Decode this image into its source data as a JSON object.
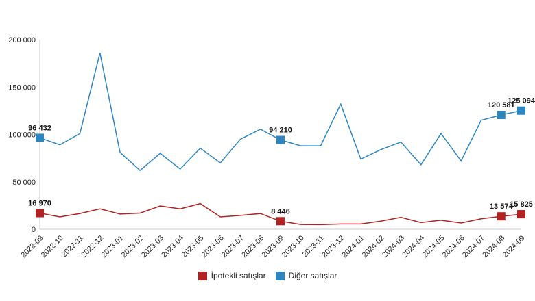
{
  "chart_data": {
    "type": "line",
    "categories": [
      "2022-09",
      "2022-10",
      "2022-11",
      "2022-12",
      "2023-01",
      "2023-02",
      "2023-03",
      "2023-04",
      "2023-05",
      "2023-06",
      "2023-07",
      "2023-08",
      "2023-09",
      "2023-10",
      "2023-11",
      "2023-12",
      "2024-01",
      "2024-02",
      "2024-03",
      "2024-04",
      "2024-05",
      "2024-06",
      "2024-07",
      "2024-08",
      "2024-09"
    ],
    "ylim": [
      0,
      200000
    ],
    "yticks": [
      0,
      50000,
      100000,
      150000,
      200000
    ],
    "ytick_labels": [
      "0",
      "50 000",
      "100 000",
      "150 000",
      "200 000"
    ],
    "grid": false,
    "legend_position": "bottom",
    "series": [
      {
        "name": "İpotekli satışlar",
        "color": "#b22222",
        "values": [
          16970,
          13000,
          16500,
          21500,
          16000,
          17000,
          24500,
          21500,
          27000,
          13000,
          14500,
          16500,
          8446,
          5000,
          4800,
          5500,
          5500,
          8500,
          12500,
          7000,
          9500,
          6500,
          11000,
          13574,
          15825
        ],
        "marked_indices": [
          0,
          12,
          23,
          24
        ],
        "labels": [
          "16 970",
          "8 446",
          "13 574",
          "15 825"
        ]
      },
      {
        "name": "Diğer satışlar",
        "color": "#2e86c1",
        "values": [
          96432,
          89000,
          101000,
          186000,
          81000,
          62000,
          80000,
          63500,
          85500,
          70000,
          95000,
          105500,
          94210,
          88000,
          88000,
          132000,
          74000,
          84000,
          92000,
          68000,
          101000,
          72000,
          115000,
          120581,
          125094
        ],
        "marked_indices": [
          0,
          12,
          23,
          24
        ],
        "labels": [
          "96 432",
          "94 210",
          "120 581",
          "125 094"
        ]
      }
    ]
  }
}
